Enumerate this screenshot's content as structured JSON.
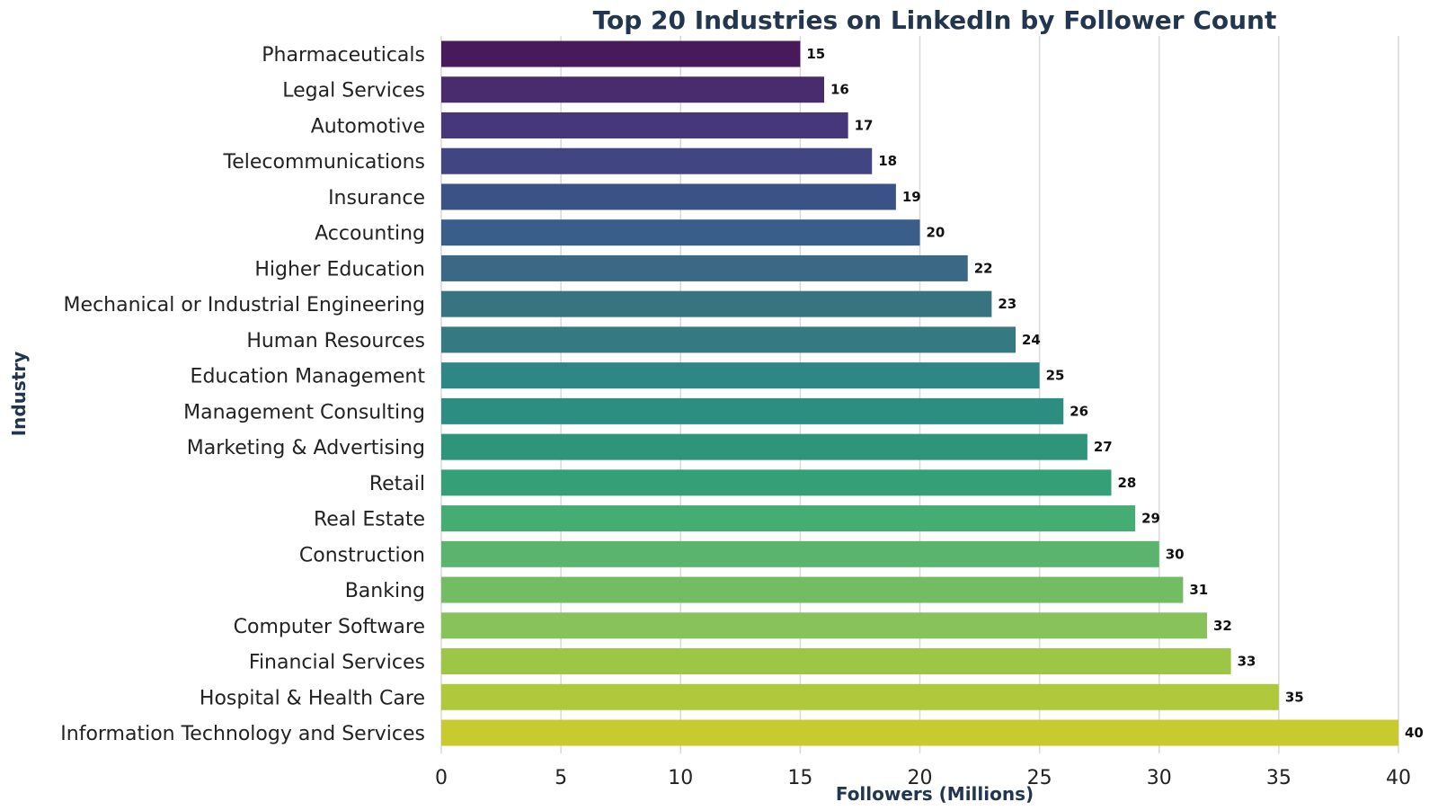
{
  "chart_data": {
    "type": "bar",
    "orientation": "horizontal",
    "title": "Top 20 Industries on LinkedIn by Follower Count",
    "xlabel": "Followers (Millions)",
    "ylabel": "Industry",
    "xlim": [
      0,
      40
    ],
    "xticks": [
      0,
      5,
      10,
      15,
      20,
      25,
      30,
      35,
      40
    ],
    "grid": "vertical",
    "categories": [
      "Pharmaceuticals",
      "Legal Services",
      "Automotive",
      "Telecommunications",
      "Insurance",
      "Accounting",
      "Higher Education",
      "Mechanical or Industrial Engineering",
      "Human Resources",
      "Education Management",
      "Management Consulting",
      "Marketing & Advertising",
      "Retail",
      "Real Estate",
      "Construction",
      "Banking",
      "Computer Software",
      "Financial Services",
      "Hospital & Health Care",
      "Information Technology and Services"
    ],
    "values": [
      15,
      16,
      17,
      18,
      19,
      20,
      22,
      23,
      24,
      25,
      26,
      27,
      28,
      29,
      30,
      31,
      32,
      33,
      35,
      40
    ],
    "colors": [
      "#481a5c",
      "#482c6e",
      "#45377a",
      "#414581",
      "#3b5286",
      "#3a5e8a",
      "#3b6884",
      "#387480",
      "#357a82",
      "#2e8785",
      "#2b8e81",
      "#2e957b",
      "#35a077",
      "#46ad72",
      "#5ab46e",
      "#72bc64",
      "#88c25a",
      "#9dc647",
      "#b0c93b",
      "#c8cb2e"
    ]
  }
}
